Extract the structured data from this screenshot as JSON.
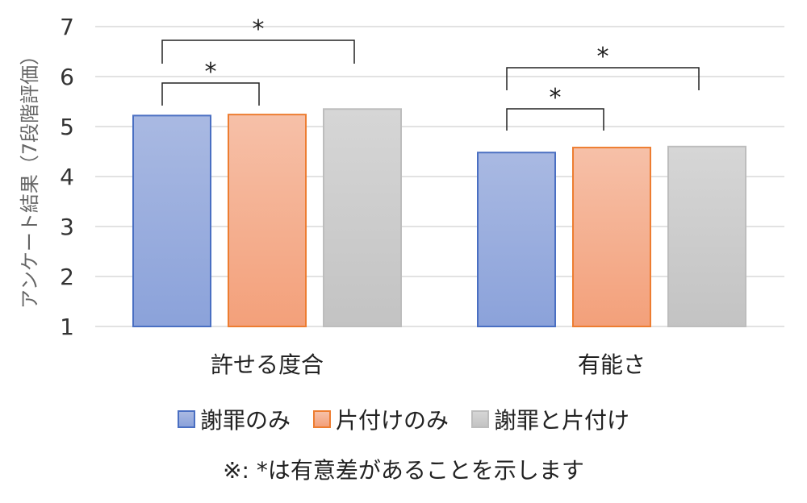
{
  "chart_data": {
    "type": "bar",
    "ylabel": "アンケート結果（7段階評価）",
    "ylim": [
      1,
      7
    ],
    "yticks": [
      1,
      2,
      3,
      4,
      5,
      6,
      7
    ],
    "grid": true,
    "categories": [
      "許せる度合",
      "有能さ"
    ],
    "series": [
      {
        "name": "謝罪のみ",
        "values": [
          5.22,
          4.48
        ],
        "color_top": "#a9b9e2",
        "color_bottom": "#8ba2da",
        "border": "#4a6fc2"
      },
      {
        "name": "片付けのみ",
        "values": [
          5.24,
          4.58
        ],
        "color_top": "#f6c0a8",
        "color_bottom": "#f3a07a",
        "border": "#ed7d31"
      },
      {
        "name": "謝罪と片付け",
        "values": [
          5.35,
          4.6
        ],
        "color_top": "#d6d6d6",
        "color_bottom": "#c3c3c3",
        "border": "#bdbdbd"
      }
    ],
    "significance": [
      {
        "category": 0,
        "from": 0,
        "to": 1,
        "label": "*"
      },
      {
        "category": 0,
        "from": 0,
        "to": 2,
        "label": "*"
      },
      {
        "category": 1,
        "from": 0,
        "to": 1,
        "label": "*"
      },
      {
        "category": 1,
        "from": 0,
        "to": 2,
        "label": "*"
      }
    ],
    "legend_position": "bottom",
    "note": "※: *は有意差があることを示します"
  }
}
